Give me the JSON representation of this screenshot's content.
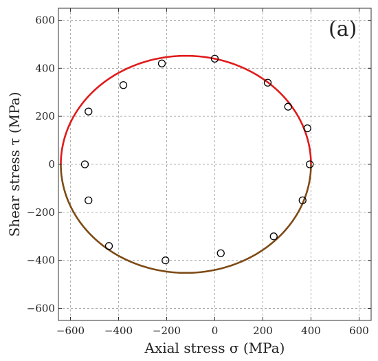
{
  "chart_data": {
    "type": "scatter",
    "panel_label": "(a)",
    "xlabel": "Axial stress σ (MPa)",
    "ylabel": "Shear stress τ (MPa)",
    "xlim": [
      -650,
      650
    ],
    "ylim": [
      -650,
      650
    ],
    "xticks": [
      -600,
      -400,
      -200,
      0,
      200,
      400,
      600
    ],
    "yticks": [
      -600,
      -400,
      -200,
      0,
      200,
      400,
      600
    ],
    "xtick_labels": [
      "−600",
      "−400",
      "−200",
      "0",
      "200",
      "400",
      "600"
    ],
    "ytick_labels": [
      "−600",
      "−400",
      "−200",
      "0",
      "200",
      "400",
      "600"
    ],
    "grid": true,
    "series": [
      {
        "kind": "points",
        "marker": "open-circle",
        "color": "#000000",
        "x": [
          -540,
          -525,
          -525,
          -440,
          -380,
          -220,
          -205,
          0,
          25,
          220,
          245,
          305,
          365,
          385,
          395
        ],
        "y": [
          0,
          220,
          -150,
          -340,
          330,
          420,
          -400,
          440,
          -370,
          340,
          -300,
          240,
          -150,
          150,
          0
        ]
      },
      {
        "kind": "curve",
        "shape": "ellipse",
        "center": [
          -120,
          0
        ],
        "semi_axes": [
          520,
          452
        ],
        "segments": [
          {
            "part": "upper",
            "color": "#e01b1b"
          },
          {
            "part": "lower",
            "color": "#7d4a15"
          }
        ]
      }
    ]
  }
}
